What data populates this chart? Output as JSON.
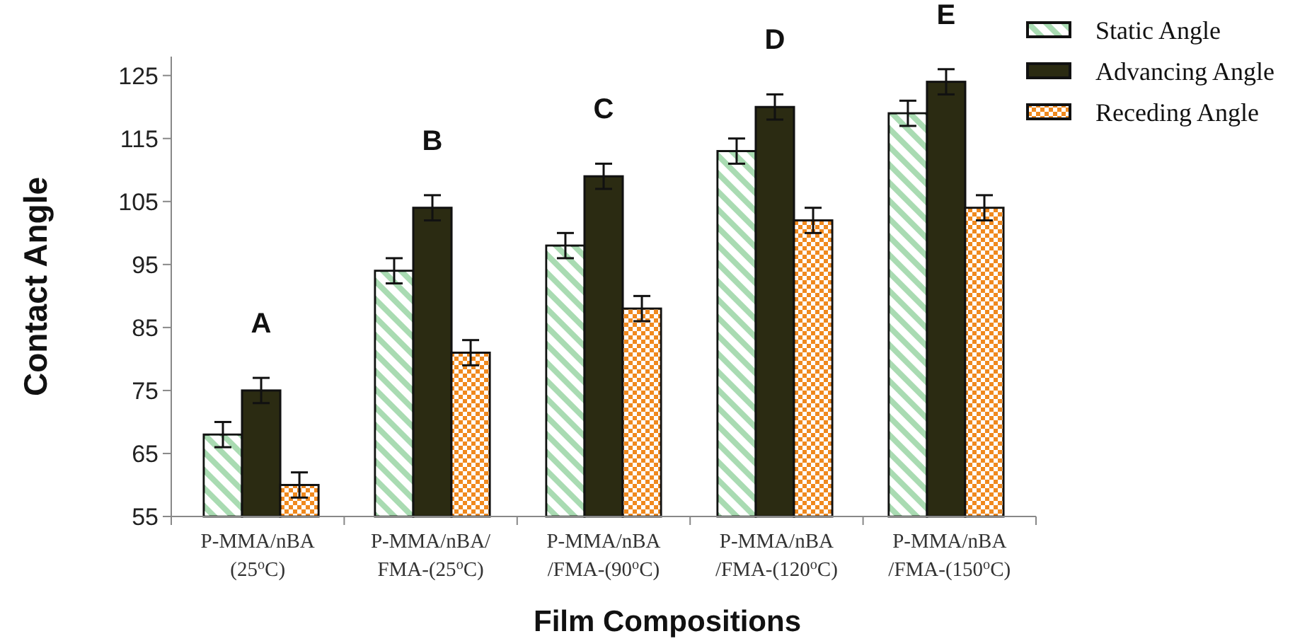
{
  "chart_data": {
    "type": "bar",
    "xlabel": "Film Compositions",
    "ylabel": "Contact Angle",
    "categories": [
      "P-MMA/nBA\n(25$^{o}$C)",
      "P-MMA/nBA/\nFMA-(25$^{o}$C)",
      "P-MMA/nBA\n/FMA-(90$^{o}$C)",
      "P-MMA/nBA\n/FMA-(120$^{o}$C)",
      "P-MMA/nBA\n/FMA-(150$^{o}$C)"
    ],
    "series": [
      {
        "name": "Static Angle",
        "color": "#a9dbb2",
        "values": [
          68,
          94,
          98,
          113,
          119
        ],
        "errors": [
          2,
          2,
          2,
          2,
          2
        ]
      },
      {
        "name": "Advancing Angle",
        "color": "#2b2b12",
        "values": [
          75,
          104,
          109,
          120,
          124
        ],
        "errors": [
          2,
          2,
          2,
          2,
          2
        ]
      },
      {
        "name": "Receding Angle",
        "color": "#f0891e",
        "values": [
          60,
          81,
          88,
          102,
          104
        ],
        "errors": [
          2,
          2,
          2,
          2,
          2
        ]
      }
    ],
    "annotations": [
      "A",
      "B",
      "C",
      "D",
      "E"
    ],
    "ylim": [
      55,
      128
    ],
    "yticks": [
      55,
      65,
      75,
      85,
      95,
      105,
      115,
      125
    ],
    "grid": false,
    "legend": "top right"
  }
}
